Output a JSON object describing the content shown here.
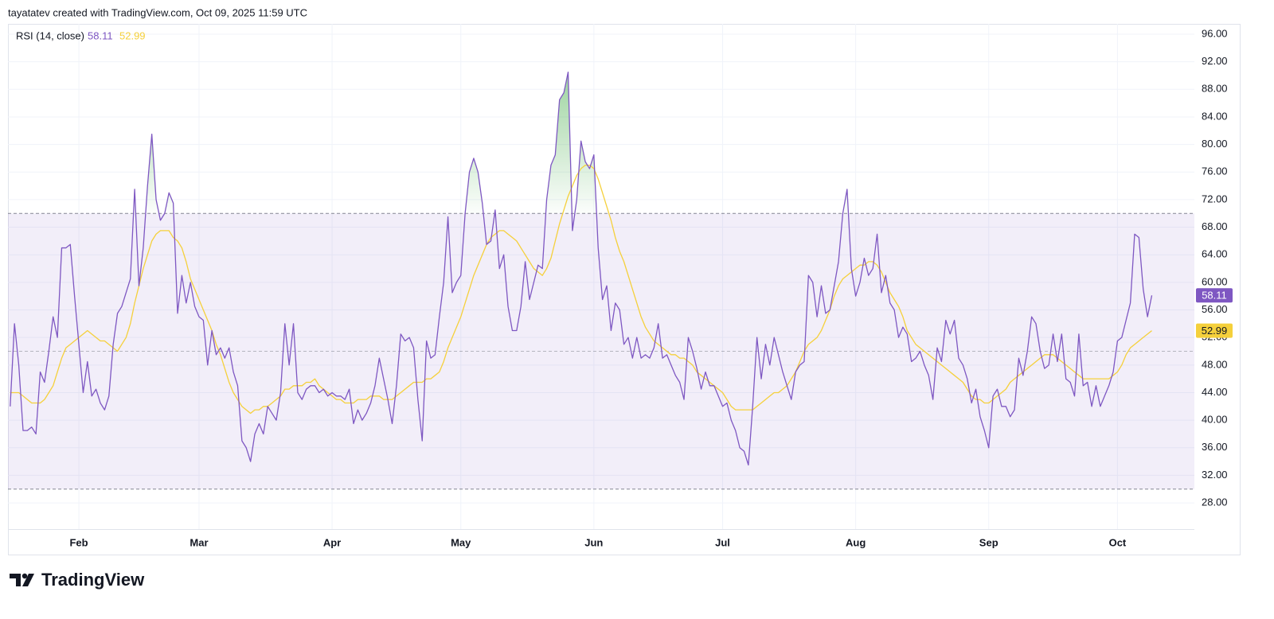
{
  "header": "tayatatev created with TradingView.com, Oct 09, 2025 11:59 UTC",
  "footer_brand": "TradingView",
  "chart_data": {
    "type": "line",
    "legend_title": "RSI (14, close)",
    "categories": [
      null,
      null,
      null,
      null,
      null,
      null,
      null,
      null,
      null,
      null,
      null,
      null,
      null,
      null,
      null,
      null,
      "Feb",
      null,
      null,
      null,
      null,
      null,
      null,
      null,
      null,
      null,
      null,
      null,
      null,
      null,
      null,
      null,
      null,
      null,
      null,
      null,
      null,
      null,
      null,
      null,
      null,
      null,
      null,
      null,
      "Mar",
      null,
      null,
      null,
      null,
      null,
      null,
      null,
      null,
      null,
      null,
      null,
      null,
      null,
      null,
      null,
      null,
      null,
      null,
      null,
      null,
      null,
      null,
      null,
      null,
      null,
      null,
      null,
      null,
      null,
      null,
      "Apr",
      null,
      null,
      null,
      null,
      null,
      null,
      null,
      null,
      null,
      null,
      null,
      null,
      null,
      null,
      null,
      null,
      null,
      null,
      null,
      null,
      null,
      null,
      null,
      null,
      null,
      null,
      null,
      null,
      null,
      "May",
      null,
      null,
      null,
      null,
      null,
      null,
      null,
      null,
      null,
      null,
      null,
      null,
      null,
      null,
      null,
      null,
      null,
      null,
      null,
      null,
      null,
      null,
      null,
      null,
      null,
      null,
      null,
      null,
      null,
      null,
      "Jun",
      null,
      null,
      null,
      null,
      null,
      null,
      null,
      null,
      null,
      null,
      null,
      null,
      null,
      null,
      null,
      null,
      null,
      null,
      null,
      null,
      null,
      null,
      null,
      null,
      null,
      null,
      null,
      null,
      null,
      "Jul",
      null,
      null,
      null,
      null,
      null,
      null,
      null,
      null,
      null,
      null,
      null,
      null,
      null,
      null,
      null,
      null,
      null,
      null,
      null,
      null,
      null,
      null,
      null,
      null,
      null,
      null,
      null,
      null,
      null,
      null,
      "Aug",
      null,
      null,
      null,
      null,
      null,
      null,
      null,
      null,
      null,
      null,
      null,
      null,
      null,
      null,
      null,
      null,
      null,
      null,
      null,
      null,
      null,
      null,
      null,
      null,
      null,
      null,
      null,
      null,
      null,
      null,
      "Sep",
      null,
      null,
      null,
      null,
      null,
      null,
      null,
      null,
      null,
      null,
      null,
      null,
      null,
      null,
      null,
      null,
      null,
      null,
      null,
      null,
      null,
      null,
      null,
      null,
      null,
      null,
      null,
      null,
      null,
      "Oct",
      null,
      null,
      null,
      null,
      null,
      null,
      null,
      null
    ],
    "series": [
      {
        "color": "#7e57c2",
        "values": [
          42,
          54,
          48,
          38.5,
          38.5,
          39,
          38,
          47,
          45.5,
          50,
          55,
          52,
          65,
          65,
          65.5,
          58,
          51,
          44,
          48.5,
          43.5,
          44.5,
          42.5,
          41.5,
          43.5,
          51,
          55.5,
          56.5,
          58.5,
          60.5,
          73.5,
          59.5,
          65,
          74,
          81.5,
          72,
          69,
          70,
          73,
          71.5,
          55.5,
          61,
          57,
          60,
          56.5,
          55,
          54.5,
          48,
          53,
          49.5,
          50.5,
          49,
          50.5,
          47,
          45,
          37,
          36,
          34,
          38,
          39.5,
          38,
          42,
          41,
          40,
          44,
          54,
          48,
          54,
          44,
          43,
          44.5,
          45,
          45,
          44,
          44.5,
          43.5,
          44,
          43.5,
          43.5,
          43,
          44.5,
          39.5,
          41.5,
          40,
          41,
          42.5,
          45,
          49,
          46,
          43,
          39.5,
          45,
          52.5,
          51.5,
          52,
          50.5,
          43,
          37,
          51.5,
          49,
          49.5,
          55,
          60,
          69.5,
          58.5,
          60,
          61,
          70,
          76,
          78,
          76,
          71.5,
          65.5,
          66,
          70.5,
          62,
          64,
          56.5,
          53,
          53,
          56.5,
          63,
          57.5,
          60,
          62.5,
          62,
          72,
          77,
          78.5,
          86.5,
          87.5,
          90.5,
          67.5,
          72,
          80.5,
          77.5,
          76.5,
          78.5,
          65,
          57.5,
          59.5,
          53,
          57,
          56,
          51,
          52,
          49,
          52,
          49,
          49.5,
          49,
          50.5,
          54,
          49,
          49.5,
          48,
          46.5,
          45.5,
          43,
          52,
          50,
          47.5,
          44.5,
          47,
          45,
          45,
          43.5,
          42,
          42.5,
          40,
          38.5,
          36,
          35.5,
          33.5,
          42,
          52,
          46,
          51,
          48,
          52,
          49.5,
          47,
          45,
          43,
          47,
          48,
          48.5,
          61,
          60,
          55,
          59.5,
          55.5,
          56,
          59.5,
          63,
          70,
          73.5,
          62,
          58,
          60,
          63.5,
          61,
          62,
          67,
          58.5,
          61,
          57,
          56,
          52,
          53.5,
          52.5,
          48.5,
          49,
          50,
          48,
          46.5,
          43,
          50.5,
          48.5,
          54.5,
          52.5,
          54.5,
          49,
          48,
          46,
          42.5,
          44.5,
          40.5,
          38.5,
          36,
          43.5,
          44.5,
          42,
          42,
          40.5,
          41.5,
          49,
          46.5,
          50,
          55,
          54,
          50,
          47.5,
          48,
          52.5,
          48.5,
          52.5,
          46,
          45.5,
          43.5,
          52.5,
          45,
          45.5,
          42,
          45,
          42,
          43.5,
          45,
          47,
          51.5,
          52,
          54.5,
          57,
          67,
          66.5,
          59,
          55,
          58.11
        ]
      },
      {
        "color": "#f5d03b",
        "values": [
          44,
          44,
          44,
          43.5,
          43,
          42.5,
          42.5,
          42.5,
          43,
          44,
          45,
          47,
          49,
          50.5,
          51,
          51.5,
          52,
          52.5,
          53,
          52.5,
          52,
          51.5,
          51.5,
          51,
          50.5,
          50,
          51,
          52,
          54,
          57,
          59.5,
          62,
          64,
          66,
          67,
          67.5,
          67.5,
          67.5,
          66.5,
          66,
          65,
          63,
          60.5,
          59,
          57.5,
          56,
          54.5,
          53,
          51,
          49.5,
          47.5,
          45.5,
          44,
          43,
          42,
          41.5,
          41,
          41.5,
          41.5,
          42,
          42,
          42.5,
          43,
          43.5,
          44.5,
          44.5,
          45,
          45,
          45,
          45.5,
          45.5,
          46,
          45,
          44.5,
          44,
          43.5,
          43,
          43,
          42.5,
          42.5,
          42.5,
          43,
          43,
          43,
          43.5,
          43.5,
          43.5,
          43,
          43,
          43,
          43.5,
          44,
          44.5,
          45,
          45.5,
          45.5,
          45.5,
          46,
          46,
          46.5,
          47,
          48.5,
          50.5,
          52,
          53.5,
          55,
          57,
          59,
          61,
          62.5,
          64,
          65.5,
          66.5,
          67,
          67.5,
          67.5,
          67,
          66.5,
          66,
          65,
          64,
          63,
          62,
          61.5,
          61,
          62,
          63.5,
          66,
          68.5,
          70.5,
          72.5,
          74,
          75.5,
          76.5,
          77,
          77,
          76.5,
          75,
          73,
          71,
          69,
          66.5,
          64.5,
          63,
          61,
          59,
          57,
          55,
          53.5,
          52.5,
          51.5,
          51,
          50.5,
          50,
          49.5,
          49.5,
          49,
          49,
          48.5,
          48,
          47,
          46.5,
          46,
          45.5,
          45,
          44.5,
          44,
          43,
          42,
          41.5,
          41.5,
          41.5,
          41.5,
          41.5,
          42,
          42.5,
          43,
          43.5,
          44,
          44,
          44.5,
          45,
          46,
          47,
          48.5,
          50,
          51,
          51.5,
          52,
          53,
          54.5,
          56,
          58,
          59.5,
          60.5,
          61,
          61.5,
          62,
          62.5,
          62.5,
          63,
          63,
          62.5,
          61.5,
          60,
          58.5,
          57.5,
          56.5,
          55,
          53,
          52,
          51,
          50.5,
          50,
          49.5,
          49,
          48.5,
          48,
          47.5,
          47,
          46.5,
          46,
          45.5,
          44.5,
          43.5,
          43,
          43,
          42.5,
          42.5,
          43,
          43.5,
          44,
          44.5,
          45.5,
          46,
          46.5,
          47,
          47.5,
          48,
          48.5,
          49,
          49.5,
          49.5,
          49.5,
          49,
          48.5,
          48,
          47.5,
          47,
          46.5,
          46,
          46,
          46,
          46,
          46,
          46,
          46,
          46.5,
          47,
          48,
          49.5,
          50.5,
          51,
          51.5,
          52,
          52.5,
          52.99
        ]
      }
    ],
    "ylim": [
      24.2,
      97.5
    ],
    "yticks": [
      {
        "value": 28,
        "label": "28.00"
      },
      {
        "value": 32,
        "label": "32.00"
      },
      {
        "value": 36,
        "label": "36.00"
      },
      {
        "value": 40,
        "label": "40.00"
      },
      {
        "value": 44,
        "label": "44.00"
      },
      {
        "value": 48,
        "label": "48.00"
      },
      {
        "value": 52,
        "label": "52.00"
      },
      {
        "value": 56,
        "label": "56.00"
      },
      {
        "value": 60,
        "label": "60.00"
      },
      {
        "value": 64,
        "label": "64.00"
      },
      {
        "value": 68,
        "label": "68.00"
      },
      {
        "value": 72,
        "label": "72.00"
      },
      {
        "value": 76,
        "label": "76.00"
      },
      {
        "value": 80,
        "label": "80.00"
      },
      {
        "value": 84,
        "label": "84.00"
      },
      {
        "value": 88,
        "label": "88.00"
      },
      {
        "value": 92,
        "label": "92.00"
      },
      {
        "value": 96,
        "label": "96.00"
      }
    ],
    "bands": {
      "upper": 70,
      "middle": 50,
      "lower": 30
    },
    "band_color": "#7e57c2",
    "overbought_fill_color": "#4caf50",
    "grid": true
  }
}
